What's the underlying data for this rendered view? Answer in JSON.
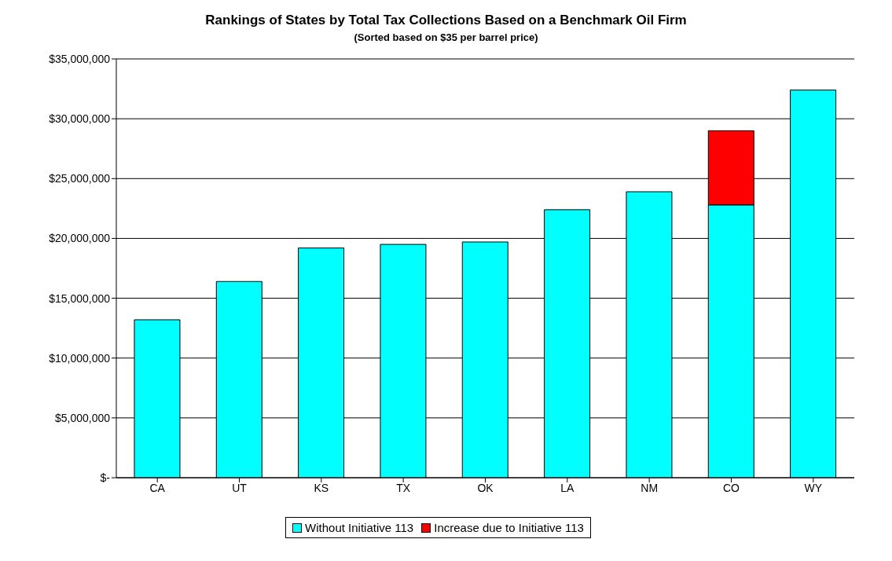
{
  "chart_data": {
    "type": "bar",
    "title": "Rankings of States by Total Tax Collections Based on a Benchmark Oil Firm",
    "subtitle": "(Sorted based on $35 per barrel price)",
    "categories": [
      "CA",
      "UT",
      "KS",
      "TX",
      "OK",
      "LA",
      "NM",
      "CO",
      "WY"
    ],
    "stacked": true,
    "series": [
      {
        "name": "Without Initiative 113",
        "color": "#00ffff",
        "values": [
          13200000,
          16400000,
          19200000,
          19500000,
          19700000,
          22400000,
          23900000,
          22800000,
          32400000
        ]
      },
      {
        "name": "Increase due to Initiative 113",
        "color": "#ff0000",
        "values": [
          null,
          null,
          null,
          null,
          null,
          null,
          null,
          6200000,
          null
        ]
      }
    ],
    "ylim": [
      0,
      35000000
    ],
    "yticks": [
      {
        "value": 0,
        "label": "$-"
      },
      {
        "value": 5000000,
        "label": "$5,000,000"
      },
      {
        "value": 10000000,
        "label": "$10,000,000"
      },
      {
        "value": 15000000,
        "label": "$15,000,000"
      },
      {
        "value": 20000000,
        "label": "$20,000,000"
      },
      {
        "value": 25000000,
        "label": "$25,000,000"
      },
      {
        "value": 30000000,
        "label": "$30,000,000"
      },
      {
        "value": 35000000,
        "label": "$35,000,000"
      }
    ],
    "grid": "y",
    "legend": "bottom"
  }
}
